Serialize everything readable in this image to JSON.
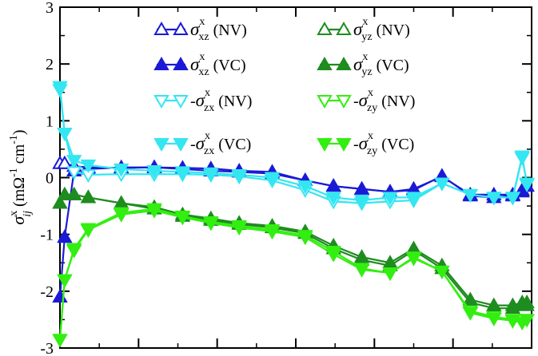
{
  "chart_data": {
    "type": "line",
    "title": "",
    "xlabel": "",
    "ylabel": {
      "sym": "σ",
      "sup": "x",
      "sub": "ij",
      "unit_open": " (mΩ",
      "unit_sup1": "-1",
      "unit_mid": " cm",
      "unit_sup2": "-1",
      "unit_close": ")"
    },
    "xlim": [
      0,
      1
    ],
    "ylim": [
      -3,
      3
    ],
    "yticks": [
      -3,
      -2,
      -1,
      0,
      1,
      2,
      3
    ],
    "ytick_labels": [
      "-3",
      "-2",
      "-1",
      "0",
      "1",
      "2",
      "3"
    ],
    "legend_position": "top",
    "x": [
      0.0,
      0.01,
      0.03,
      0.06,
      0.13,
      0.2,
      0.26,
      0.32,
      0.38,
      0.45,
      0.52,
      0.58,
      0.64,
      0.7,
      0.75,
      0.81,
      0.87,
      0.92,
      0.96,
      0.98,
      0.99
    ],
    "series": [
      {
        "name_sign": "",
        "name_sub": "xz",
        "name_tail": " (NV)",
        "color": "#1a1ad6",
        "marker": "up",
        "filled": false,
        "values": [
          0.25,
          0.25,
          0.2,
          0.18,
          0.17,
          0.18,
          0.15,
          0.12,
          0.1,
          0.07,
          -0.05,
          -0.15,
          -0.2,
          -0.25,
          -0.2,
          0.02,
          -0.3,
          -0.3,
          -0.3,
          -0.22,
          -0.15
        ]
      },
      {
        "name_sign": "",
        "name_sub": "xz",
        "name_tail": " (VC)",
        "color": "#1a1ad6",
        "marker": "up",
        "filled": true,
        "values": [
          -2.1,
          -1.05,
          0.12,
          0.15,
          0.18,
          0.18,
          0.17,
          0.16,
          0.12,
          0.1,
          -0.05,
          -0.15,
          -0.2,
          -0.25,
          -0.22,
          0.03,
          -0.32,
          -0.35,
          -0.32,
          -0.25,
          -0.15
        ]
      },
      {
        "name_sign": "-",
        "name_sub": "zx",
        "name_tail": " (NV)",
        "color": "#33e6f2",
        "marker": "down",
        "filled": false,
        "values": [
          1.55,
          0.78,
          0.1,
          0.05,
          0.06,
          0.06,
          0.06,
          0.05,
          0.02,
          -0.05,
          -0.22,
          -0.42,
          -0.45,
          -0.42,
          -0.4,
          -0.1,
          -0.3,
          -0.35,
          -0.35,
          0.35,
          -0.1
        ]
      },
      {
        "name_sign": "-",
        "name_sub": "zx",
        "name_tail": " (VC)",
        "color": "#33e6f2",
        "marker": "down",
        "filled": true,
        "values": [
          1.6,
          0.78,
          0.3,
          0.22,
          0.15,
          0.12,
          0.1,
          0.08,
          0.05,
          0.0,
          -0.15,
          -0.35,
          -0.4,
          -0.35,
          -0.35,
          -0.1,
          -0.3,
          -0.35,
          -0.35,
          0.38,
          -0.12
        ]
      },
      {
        "name_sign": "",
        "name_sub": "yz",
        "name_tail": " (NV)",
        "color": "#1e8c1e",
        "marker": "up",
        "filled": false,
        "values": [
          -0.45,
          -0.3,
          -0.3,
          -0.35,
          -0.45,
          -0.52,
          -0.65,
          -0.72,
          -0.8,
          -0.85,
          -0.95,
          -1.2,
          -1.4,
          -1.5,
          -1.25,
          -1.55,
          -2.15,
          -2.25,
          -2.25,
          -2.2,
          -2.2
        ]
      },
      {
        "name_sign": "",
        "name_sub": "yz",
        "name_tail": " (VC)",
        "color": "#1e8c1e",
        "marker": "up",
        "filled": true,
        "values": [
          -0.45,
          -0.3,
          -0.3,
          -0.35,
          -0.45,
          -0.55,
          -0.68,
          -0.75,
          -0.82,
          -0.88,
          -0.98,
          -1.25,
          -1.45,
          -1.55,
          -1.28,
          -1.6,
          -2.2,
          -2.3,
          -2.3,
          -2.25,
          -2.25
        ]
      },
      {
        "name_sign": "-",
        "name_sub": "zy",
        "name_tail": " (NV)",
        "color": "#33ee11",
        "marker": "down",
        "filled": false,
        "values": [
          -2.85,
          -1.8,
          -1.28,
          -0.92,
          -0.65,
          -0.58,
          -0.7,
          -0.8,
          -0.88,
          -0.95,
          -1.05,
          -1.35,
          -1.62,
          -1.68,
          -1.42,
          -1.65,
          -2.35,
          -2.45,
          -2.5,
          -2.5,
          -2.5
        ]
      },
      {
        "name_sign": "-",
        "name_sub": "zy",
        "name_tail": " (VC)",
        "color": "#33ee11",
        "marker": "down",
        "filled": true,
        "values": [
          -2.85,
          -1.8,
          -1.25,
          -0.9,
          -0.62,
          -0.55,
          -0.68,
          -0.78,
          -0.85,
          -0.92,
          -1.02,
          -1.3,
          -1.6,
          -1.68,
          -1.4,
          -1.65,
          -2.38,
          -2.48,
          -2.52,
          -2.55,
          -2.5
        ]
      }
    ]
  }
}
